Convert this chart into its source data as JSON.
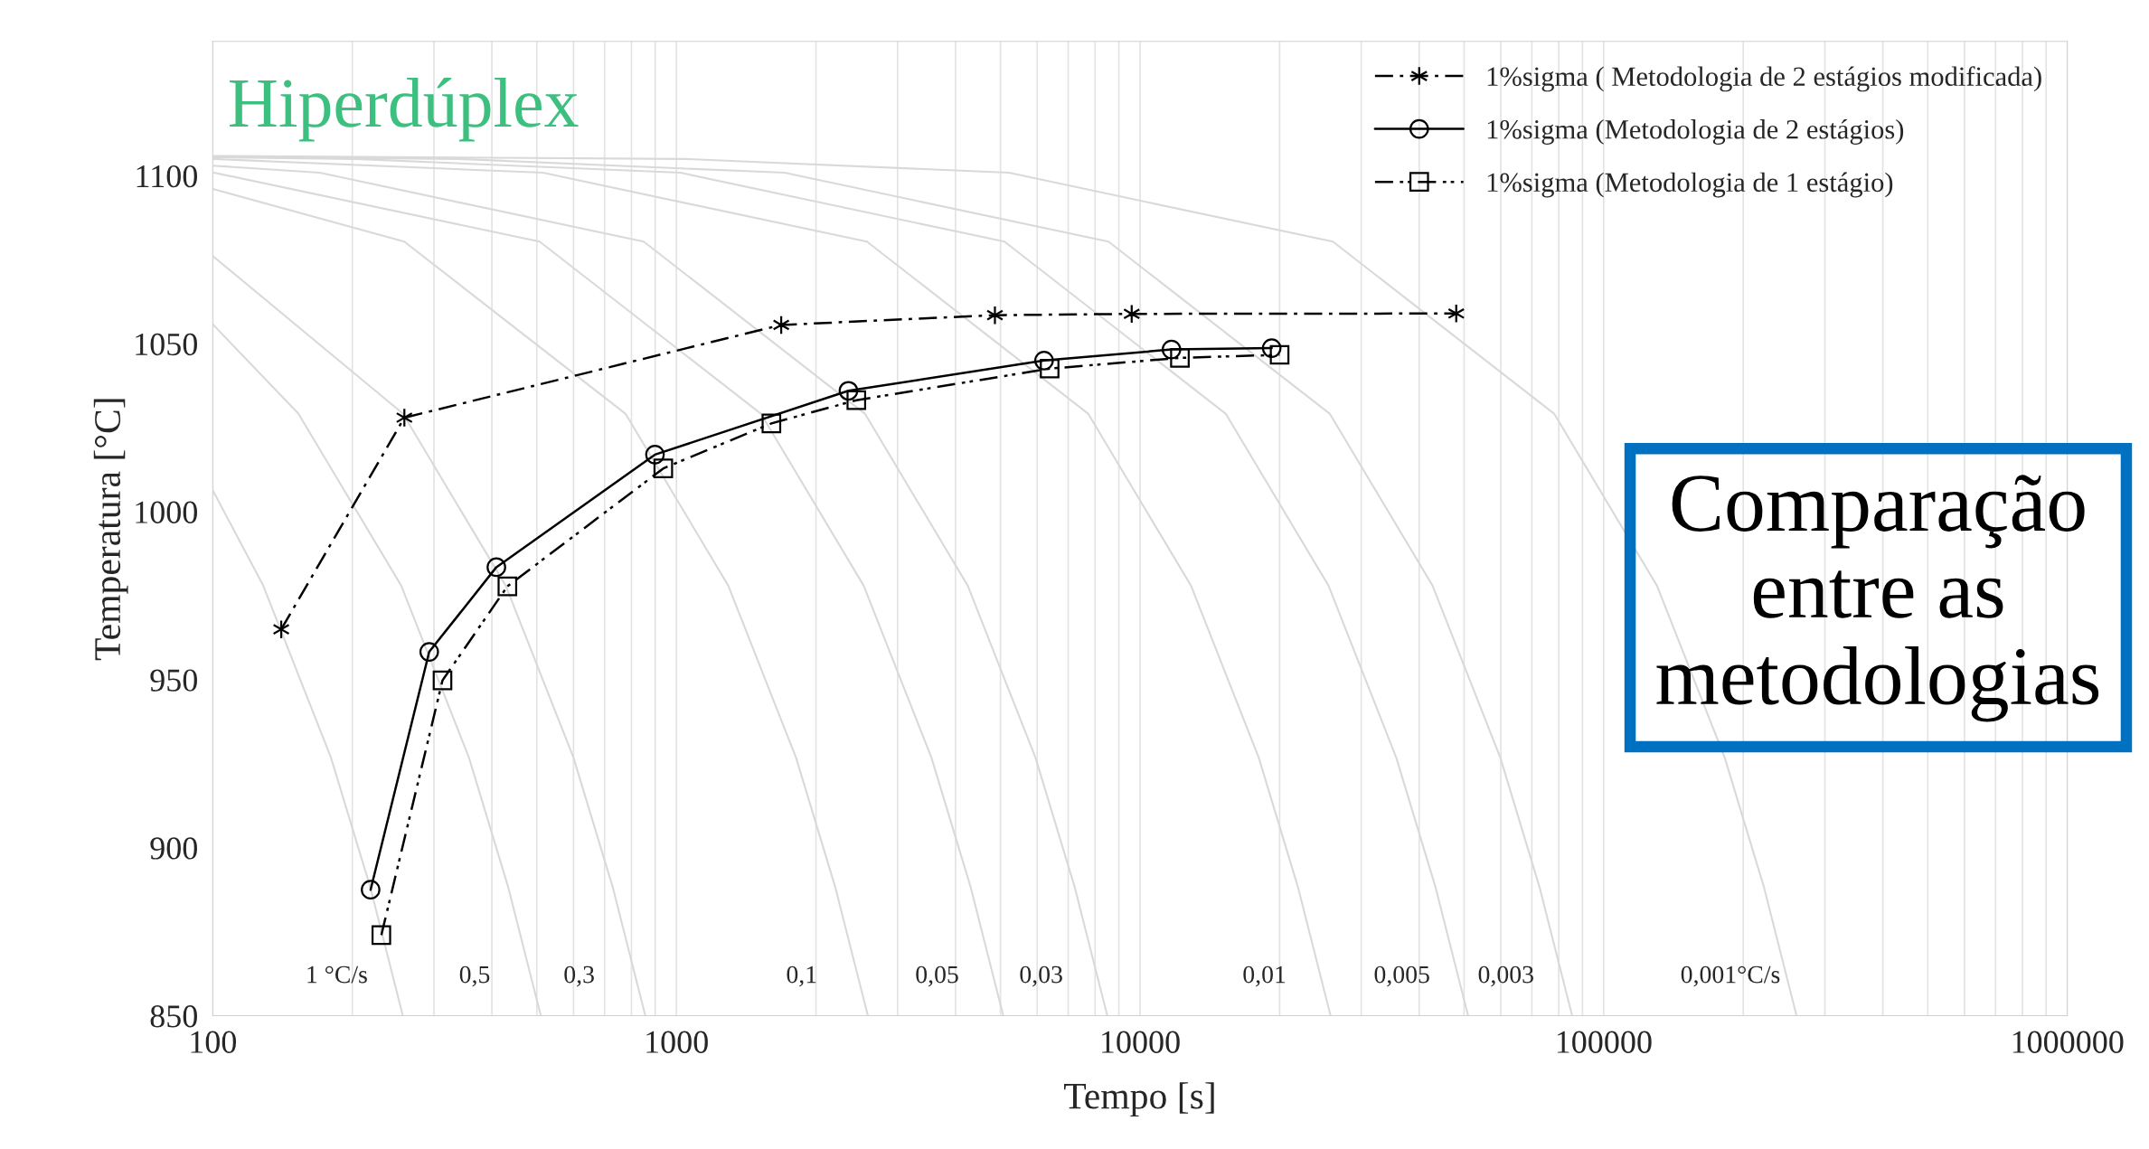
{
  "chart_data": {
    "type": "line",
    "xlabel": "Tempo [s]",
    "ylabel": "Temperatura [°C]",
    "log": "x",
    "grid": "x",
    "legend": "top right",
    "xlim": [
      100,
      1000000
    ],
    "xticks": [
      100,
      1000,
      10000,
      100000,
      1000000
    ],
    "ylim": [
      850,
      1140
    ],
    "yticks": [
      850,
      900,
      950,
      1000,
      1050,
      1100
    ],
    "series": [
      {
        "color": "#d9d9d9",
        "marker": "none",
        "line_style": "solid",
        "x": [
          100,
          128.5,
          179.9,
          218.5,
          257
        ],
        "values": [
          1006.4,
          978,
          926.8,
          888.4,
          850
        ]
      },
      {
        "color": "#d9d9d9",
        "marker": "none",
        "line_style": "solid",
        "x": [
          100,
          153,
          255,
          357,
          433.5,
          510
        ],
        "values": [
          1055.8,
          1029.2,
          978,
          926.8,
          888.4,
          850
        ]
      },
      {
        "color": "#d9d9d9",
        "marker": "none",
        "line_style": "solid",
        "x": [
          100,
          257.1,
          428.5,
          599.9,
          728.5,
          857
        ],
        "values": [
          1076.1,
          1029.2,
          978,
          926.8,
          888.4,
          850
        ]
      },
      {
        "color": "#d9d9d9",
        "marker": "none",
        "line_style": "solid",
        "x": [
          100,
          258.8,
          776.4,
          1294,
          1811.6,
          2199.8,
          2588
        ],
        "values": [
          1096.1,
          1080.4,
          1029.2,
          978,
          926.8,
          888.4,
          850
        ]
      },
      {
        "color": "#d9d9d9",
        "marker": "none",
        "line_style": "solid",
        "x": [
          100,
          507,
          1521,
          2535,
          3549,
          4309.5,
          5070
        ],
        "values": [
          1101,
          1080.4,
          1029.2,
          978,
          926.8,
          888.4,
          850
        ]
      },
      {
        "color": "#d9d9d9",
        "marker": "none",
        "line_style": "solid",
        "x": [
          100,
          170,
          850,
          2550,
          4250,
          5950,
          7225,
          8500
        ],
        "values": [
          1103,
          1100.9,
          1080.4,
          1029.2,
          978,
          926.8,
          888.4,
          850
        ]
      },
      {
        "color": "#d9d9d9",
        "marker": "none",
        "line_style": "solid",
        "x": [
          100,
          515.2,
          2576,
          7728,
          12880,
          18032,
          21896,
          25760
        ],
        "values": [
          1105,
          1100.9,
          1080.4,
          1029.2,
          978,
          926.8,
          888.4,
          850
        ]
      },
      {
        "color": "#d9d9d9",
        "marker": "none",
        "line_style": "solid",
        "x": [
          100,
          204,
          1020,
          5100,
          15300,
          25500,
          35700,
          43350,
          51000
        ],
        "values": [
          1105.5,
          1105,
          1100.9,
          1080.4,
          1029.2,
          978,
          926.8,
          888.4,
          850
        ]
      },
      {
        "color": "#d9d9d9",
        "marker": "none",
        "line_style": "solid",
        "x": [
          100,
          342,
          1710,
          8550,
          25650,
          42750,
          59850,
          72675,
          85500
        ],
        "values": [
          1105.7,
          1105,
          1100.9,
          1080.4,
          1029.2,
          978,
          926.8,
          888.4,
          850
        ]
      },
      {
        "color": "#d9d9d9",
        "marker": "none",
        "line_style": "solid",
        "x": [
          100,
          1042,
          5212,
          26060,
          78180,
          130300,
          182420,
          221510,
          260600
        ],
        "values": [
          1105.9,
          1105,
          1100.9,
          1080.4,
          1029.2,
          978,
          926.8,
          888.4,
          850
        ]
      },
      {
        "name": "1%sigma ( Metodologia de 2 estágios modificada)",
        "color": "#000000",
        "marker": "cross",
        "line_style": "dashdot",
        "x": [
          140.5,
          259,
          1683,
          4864,
          9594,
          48080
        ],
        "values": [
          965,
          1028,
          1055.6,
          1058.5,
          1058.9,
          1059
        ]
      },
      {
        "name": "1%sigma (Metodologia de 2 estágios)",
        "color": "#000000",
        "marker": "circle",
        "line_style": "solid",
        "x": [
          219,
          293,
          409,
          899,
          2350,
          6208,
          11690,
          19230
        ],
        "values": [
          887.5,
          958.3,
          983.5,
          1017,
          1036,
          1045,
          1048.3,
          1048.7
        ]
      },
      {
        "name": "1%sigma (Metodologia de 1 estágio)",
        "color": "#000000",
        "marker": "square",
        "line_style": "dashdotdot",
        "x": [
          231,
          313,
          432,
          937,
          1603,
          2444,
          6383,
          12190,
          20000
        ],
        "values": [
          874,
          949.8,
          977.8,
          1012.9,
          1026.3,
          1033.2,
          1042.6,
          1045.8,
          1046.7
        ]
      }
    ],
    "annotations": [
      "Hiperdúplex",
      "Comparação entre as metodologias",
      "1 °C/s",
      "0,5",
      "0,3",
      "0,1",
      "0,05",
      "0,03",
      "0,01",
      "0,005",
      "0,003",
      "0,001°C/s"
    ]
  }
}
